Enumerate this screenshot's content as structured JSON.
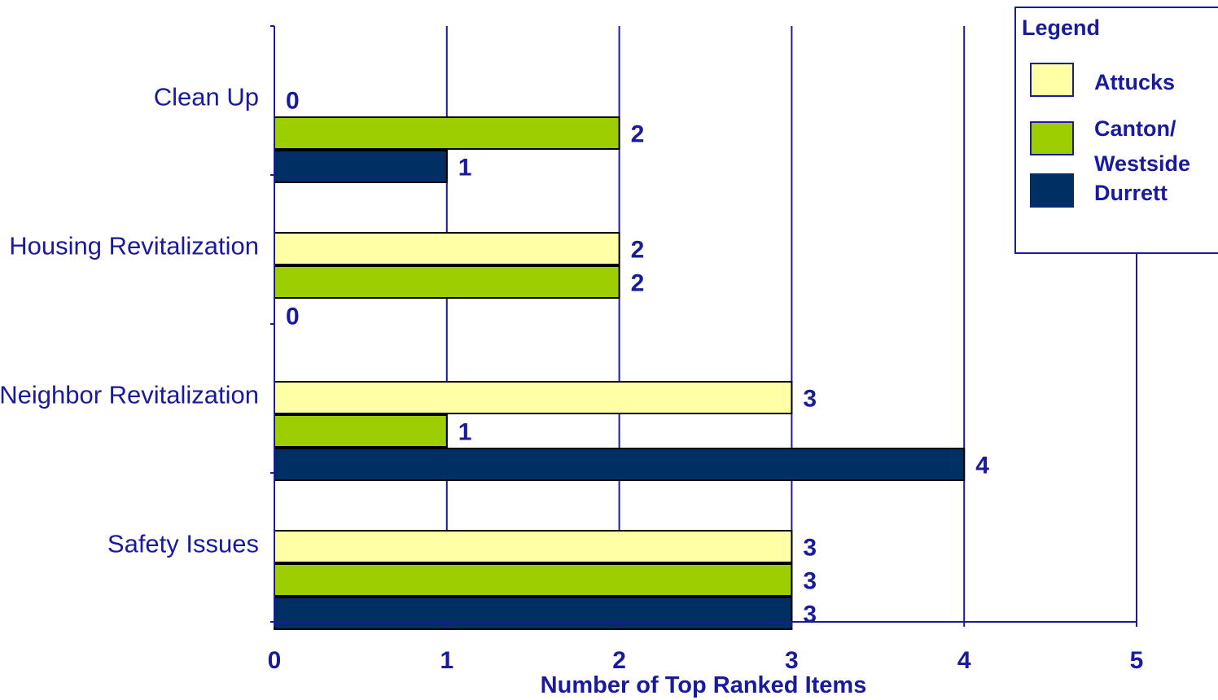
{
  "chart_data": {
    "type": "bar",
    "orientation": "horizontal",
    "categories": [
      "Clean Up",
      "Housing Revitalization",
      "Neighbor Revitalization",
      "Safety Issues"
    ],
    "series": [
      {
        "name": "Attucks",
        "values": [
          0,
          2,
          3,
          3
        ],
        "color": "#ffffa6"
      },
      {
        "name": "Canton/ Westside",
        "values": [
          2,
          2,
          1,
          3
        ],
        "color": "#9cce00"
      },
      {
        "name": "Durrett",
        "values": [
          1,
          0,
          4,
          3
        ],
        "color": "#003063"
      }
    ],
    "title": "",
    "xlabel": "Number of Top Ranked Items",
    "ylabel": "",
    "xlim": [
      0,
      5
    ],
    "xticks": [
      0,
      1,
      2,
      3,
      4,
      5
    ],
    "grid": true,
    "legend": {
      "title": "Legend",
      "placement": "top-right"
    },
    "axis_color": "#1a1a9c",
    "bar_outline_color": "#000000"
  }
}
